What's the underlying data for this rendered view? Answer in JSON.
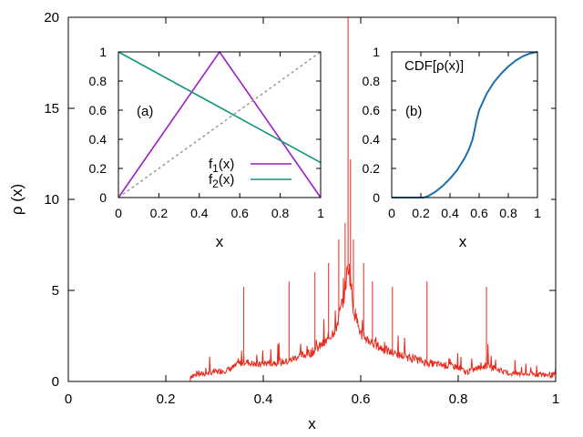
{
  "chart_data": [
    {
      "id": "main",
      "type": "line",
      "title": "",
      "xlabel": "x",
      "ylabel": "ρ (x)",
      "xlim": [
        0,
        1
      ],
      "ylim": [
        0,
        20
      ],
      "xticks": [
        0,
        0.2,
        0.4,
        0.6,
        0.8,
        1
      ],
      "xtick_labels": [
        "0",
        "0.2",
        "0.4",
        "0.6",
        "0.8",
        "1"
      ],
      "yticks": [
        0,
        5,
        10,
        15,
        20
      ],
      "ytick_labels": [
        "0",
        "5",
        "10",
        "15",
        "20"
      ],
      "series": [
        {
          "name": "ρ(x)",
          "color": "#e8291c",
          "baseline": [
            {
              "x": 0.0,
              "y": 0.0
            },
            {
              "x": 0.25,
              "y": 0.0
            },
            {
              "x": 0.25,
              "y": 0.3
            },
            {
              "x": 0.33,
              "y": 0.65
            },
            {
              "x": 0.36,
              "y": 1.1
            },
            {
              "x": 0.39,
              "y": 0.9
            },
            {
              "x": 0.4,
              "y": 1.0
            },
            {
              "x": 0.45,
              "y": 1.1
            },
            {
              "x": 0.47,
              "y": 1.35
            },
            {
              "x": 0.5,
              "y": 1.6
            },
            {
              "x": 0.53,
              "y": 2.2
            },
            {
              "x": 0.55,
              "y": 3.0
            },
            {
              "x": 0.565,
              "y": 4.6
            },
            {
              "x": 0.575,
              "y": 6.5
            },
            {
              "x": 0.585,
              "y": 4.0
            },
            {
              "x": 0.6,
              "y": 2.6
            },
            {
              "x": 0.63,
              "y": 2.0
            },
            {
              "x": 0.66,
              "y": 1.6
            },
            {
              "x": 0.7,
              "y": 1.3
            },
            {
              "x": 0.74,
              "y": 1.0
            },
            {
              "x": 0.8,
              "y": 0.8
            },
            {
              "x": 0.815,
              "y": 0.5
            },
            {
              "x": 0.86,
              "y": 0.9
            },
            {
              "x": 0.9,
              "y": 0.45
            },
            {
              "x": 1.0,
              "y": 0.35
            }
          ],
          "spikes": [
            {
              "x": 0.36,
              "y": 5.2
            },
            {
              "x": 0.453,
              "y": 5.5
            },
            {
              "x": 0.506,
              "y": 6.0
            },
            {
              "x": 0.534,
              "y": 6.5
            },
            {
              "x": 0.555,
              "y": 7.8
            },
            {
              "x": 0.568,
              "y": 8.7
            },
            {
              "x": 0.574,
              "y": 20.0
            },
            {
              "x": 0.579,
              "y": 12.2
            },
            {
              "x": 0.585,
              "y": 7.8
            },
            {
              "x": 0.606,
              "y": 6.5
            },
            {
              "x": 0.624,
              "y": 5.5
            },
            {
              "x": 0.665,
              "y": 5.2
            },
            {
              "x": 0.736,
              "y": 5.5
            },
            {
              "x": 0.858,
              "y": 5.2
            }
          ]
        }
      ]
    },
    {
      "id": "inset-a",
      "type": "line",
      "annotation": "(a)",
      "xlabel": "x",
      "ylabel": "",
      "xlim": [
        0,
        1
      ],
      "ylim": [
        0,
        1
      ],
      "xticks": [
        0,
        0.2,
        0.4,
        0.6,
        0.8,
        1
      ],
      "xtick_labels": [
        "0",
        "0.2",
        "0.4",
        "0.6",
        "0.8",
        "1"
      ],
      "yticks": [
        0,
        0.2,
        0.4,
        0.6,
        0.8,
        1
      ],
      "ytick_labels": [
        "0",
        "0.2",
        "0.4",
        "0.6",
        "0.8",
        "1"
      ],
      "series": [
        {
          "name": "f1(x)",
          "label_main": "f",
          "label_sub": "1",
          "label_tail": "(x)",
          "color": "#9a1fc4",
          "x": [
            0,
            0.5,
            1
          ],
          "y": [
            0,
            1,
            0
          ]
        },
        {
          "name": "f2(x)",
          "label_main": "f",
          "label_sub": "2",
          "label_tail": "(x)",
          "color": "#11967e",
          "x": [
            0,
            1
          ],
          "y": [
            1,
            0.24
          ]
        },
        {
          "name": "identity",
          "color": "#999999",
          "dashed": true,
          "x": [
            0,
            1
          ],
          "y": [
            0,
            1
          ]
        }
      ]
    },
    {
      "id": "inset-b",
      "type": "line",
      "annotation": "(b)",
      "title": "CDF[ρ(x)]",
      "xlabel": "x",
      "ylabel": "",
      "xlim": [
        0,
        1
      ],
      "ylim": [
        0,
        1
      ],
      "xticks": [
        0,
        0.2,
        0.4,
        0.6,
        0.8,
        1
      ],
      "xtick_labels": [
        "0",
        "0.2",
        "0.4",
        "0.6",
        "0.8",
        "1"
      ],
      "yticks": [
        0,
        0.2,
        0.4,
        0.6,
        0.8,
        1
      ],
      "ytick_labels": [
        "0",
        "0.2",
        "0.4",
        "0.6",
        "0.8",
        "1"
      ],
      "series": [
        {
          "name": "CDF",
          "color": "#1a6faf",
          "x": [
            0,
            0.22,
            0.25,
            0.3,
            0.35,
            0.4,
            0.45,
            0.5,
            0.53,
            0.555,
            0.57,
            0.58,
            0.6,
            0.65,
            0.7,
            0.75,
            0.8,
            0.85,
            0.9,
            0.95,
            1.0
          ],
          "y": [
            0,
            0.0,
            0.01,
            0.04,
            0.08,
            0.13,
            0.19,
            0.27,
            0.33,
            0.4,
            0.47,
            0.52,
            0.6,
            0.71,
            0.79,
            0.85,
            0.9,
            0.94,
            0.97,
            0.99,
            1.0
          ]
        }
      ]
    }
  ]
}
